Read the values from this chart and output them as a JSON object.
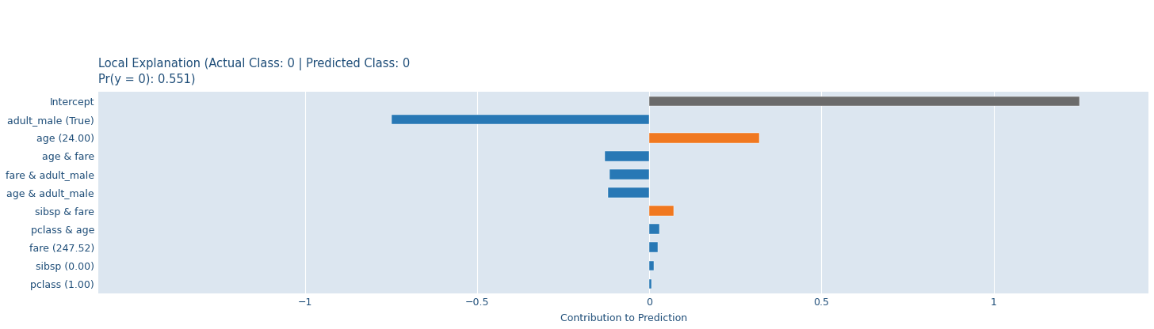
{
  "title_line1": "Local Explanation (Actual Class: 0 | Predicted Class: 0",
  "title_line2": "Pr(y = 0): 0.551)",
  "xlabel": "Contribution to Prediction",
  "categories": [
    "pclass (1.00)",
    "sibsp (0.00)",
    "fare (247.52)",
    "pclass & age",
    "sibsp & fare",
    "age & adult_male",
    "fare & adult_male",
    "age & fare",
    "age (24.00)",
    "adult_male (True)",
    "Intercept"
  ],
  "values": [
    0.005,
    0.012,
    0.025,
    0.03,
    0.07,
    -0.12,
    -0.115,
    -0.13,
    0.32,
    -0.75,
    1.25
  ],
  "bar_colors": [
    "#2878b5",
    "#2878b5",
    "#2878b5",
    "#2878b5",
    "#f07820",
    "#2878b5",
    "#2878b5",
    "#2878b5",
    "#f07820",
    "#2878b5",
    "#6b6b6b"
  ],
  "bg_color": "#dce6f0",
  "fig_bg_color": "#ffffff",
  "title_color": "#1f4e79",
  "label_color": "#1f4e79",
  "tick_color": "#1f4e79",
  "xlabel_color": "#1f4e79",
  "xlim": [
    -1.6,
    1.45
  ],
  "xticks": [
    -1.0,
    -0.5,
    0.0,
    0.5,
    1.0
  ],
  "xtick_labels": [
    "−1",
    "−0.5",
    "0",
    "0.5",
    "1"
  ],
  "title_fontsize": 10.5,
  "axis_fontsize": 9,
  "label_fontsize": 9,
  "bar_height": 0.55
}
